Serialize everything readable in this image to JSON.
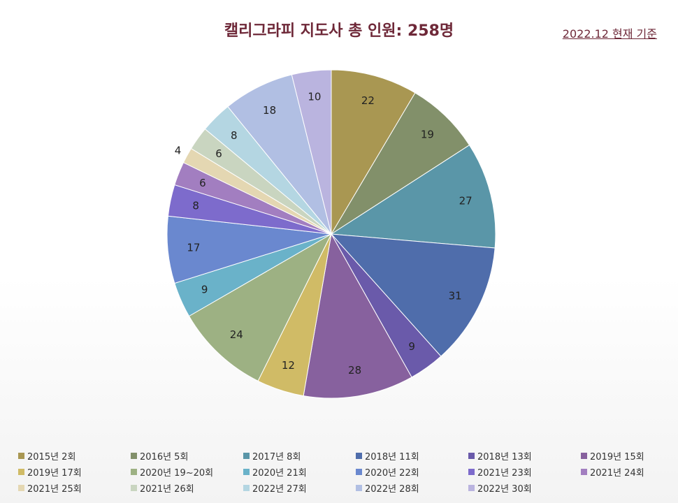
{
  "chart_data": {
    "type": "pie",
    "title": "캘리그라피 지도사 총 인원: 258명",
    "note": "2022.12 현재 기준",
    "start_angle_deg": 0,
    "direction": "clockwise",
    "legend_position": "bottom",
    "categories": [
      "2015년 2회",
      "2016년 5회",
      "2017년 8회",
      "2018년 11회",
      "2018년 13회",
      "2019년 15회",
      "2019년 17회",
      "2020년 19~20회",
      "2020년 21회",
      "2020년 22회",
      "2021년 23회",
      "2021년 24회",
      "2021년 25회",
      "2021년 26회",
      "2022년 27회",
      "2022년 28회",
      "2022년 30회"
    ],
    "values": [
      22,
      19,
      27,
      31,
      9,
      28,
      12,
      24,
      9,
      17,
      8,
      6,
      4,
      6,
      8,
      18,
      10
    ],
    "colors": [
      "#a99752",
      "#82906a",
      "#5a96a8",
      "#4f6dab",
      "#6a5aaa",
      "#87619e",
      "#d0bb66",
      "#9db183",
      "#6ab2c9",
      "#6a88cf",
      "#7d6bcc",
      "#a27ec0",
      "#e4d7b2",
      "#c9d5c0",
      "#b4d6e2",
      "#b1bfe3",
      "#bab4df"
    ]
  }
}
